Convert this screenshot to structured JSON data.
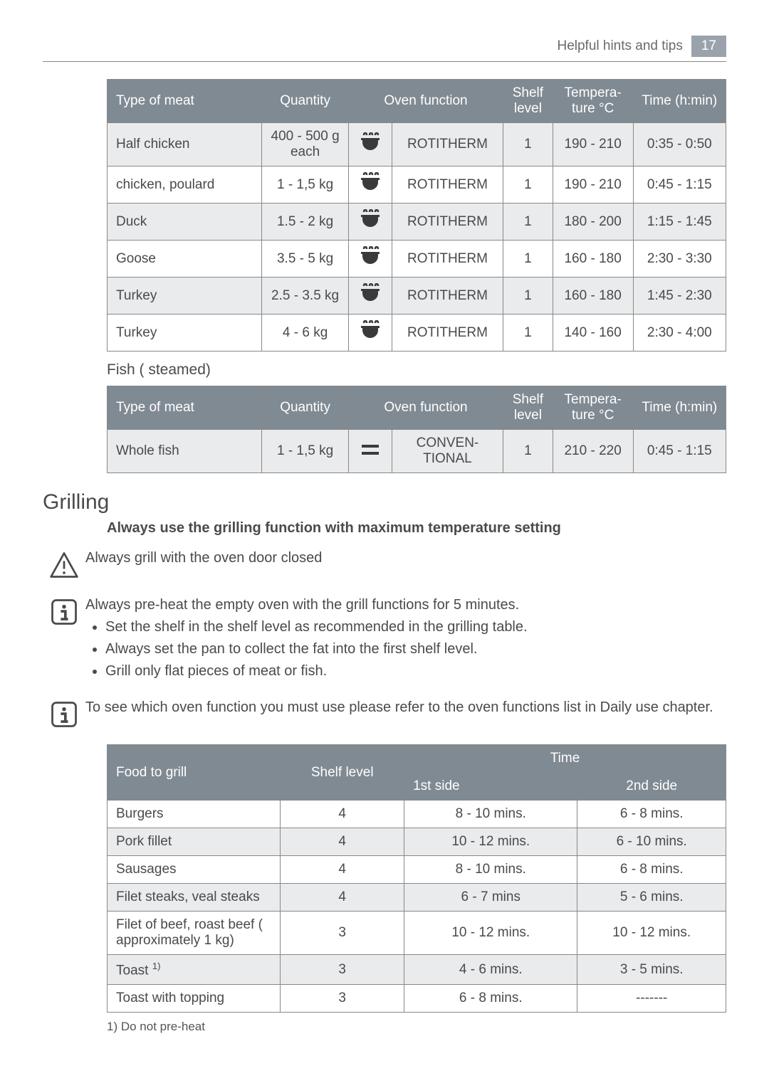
{
  "header": {
    "breadcrumb": "Helpful hints and tips",
    "page_number": "17"
  },
  "colors": {
    "header_bg": "#808a92",
    "stripe": "#e9ebed",
    "text": "#4a4a4a",
    "border": "#888888"
  },
  "table1": {
    "headers": [
      "Type of meat",
      "Quantity",
      "Oven function",
      "Shelf level",
      "Tempera-\nture °C",
      "Time (h:min)"
    ],
    "rows": [
      {
        "type": "Half chicken",
        "qty": "400 - 500 g each",
        "icon": "rotitherm",
        "fn": "ROTITHERM",
        "shelf": "1",
        "temp": "190 - 210",
        "time": "0:35 - 0:50"
      },
      {
        "type": "chicken, poulard",
        "qty": "1 - 1,5 kg",
        "icon": "rotitherm",
        "fn": "ROTITHERM",
        "shelf": "1",
        "temp": "190 - 210",
        "time": "0:45 - 1:15"
      },
      {
        "type": "Duck",
        "qty": "1.5 - 2 kg",
        "icon": "rotitherm",
        "fn": "ROTITHERM",
        "shelf": "1",
        "temp": "180 - 200",
        "time": "1:15 - 1:45"
      },
      {
        "type": "Goose",
        "qty": "3.5 - 5 kg",
        "icon": "rotitherm",
        "fn": "ROTITHERM",
        "shelf": "1",
        "temp": "160 - 180",
        "time": "2:30 - 3:30"
      },
      {
        "type": "Turkey",
        "qty": "2.5 - 3.5 kg",
        "icon": "rotitherm",
        "fn": "ROTITHERM",
        "shelf": "1",
        "temp": "160 - 180",
        "time": "1:45 - 2:30"
      },
      {
        "type": "Turkey",
        "qty": "4 - 6 kg",
        "icon": "rotitherm",
        "fn": "ROTITHERM",
        "shelf": "1",
        "temp": "140 - 160",
        "time": "2:30 - 4:00"
      }
    ]
  },
  "fish_title": "Fish ( steamed)",
  "table2": {
    "headers": [
      "Type of meat",
      "Quantity",
      "Oven function",
      "Shelf level",
      "Tempera-\nture °C",
      "Time (h:min)"
    ],
    "rows": [
      {
        "type": "Whole fish",
        "qty": "1 - 1,5 kg",
        "icon": "conventional",
        "fn": "CONVEN-\nTIONAL",
        "shelf": "1",
        "temp": "210 - 220",
        "time": "0:45 - 1:15"
      }
    ]
  },
  "grilling": {
    "title": "Grilling",
    "bold": "Always use the grilling function with maximum temperature setting",
    "warning_text": "Always grill with the oven door closed",
    "info1_intro": "Always pre-heat the empty oven with the grill functions for 5 minutes.",
    "info1_bullets": [
      "Set the shelf in the shelf level as recommended in the grilling table.",
      "Always set the pan to collect the fat into the first shelf level.",
      "Grill only flat pieces of meat or fish."
    ],
    "info2_text": "To see which oven function you must use please refer to the oven functions list in Daily use chapter."
  },
  "table3": {
    "headers_top": [
      "Food to grill",
      "Shelf level",
      "Time"
    ],
    "headers_sub": [
      "1st side",
      "2nd side"
    ],
    "rows": [
      {
        "food": "Burgers",
        "shelf": "4",
        "side1": "8 - 10 mins.",
        "side2": "6 - 8 mins."
      },
      {
        "food": "Pork fillet",
        "shelf": "4",
        "side1": "10 - 12 mins.",
        "side2": "6 - 10 mins."
      },
      {
        "food": "Sausages",
        "shelf": "4",
        "side1": "8 - 10 mins.",
        "side2": "6 - 8 mins."
      },
      {
        "food": "Filet steaks, veal steaks",
        "shelf": "4",
        "side1": "6 - 7 mins",
        "side2": "5 - 6 mins."
      },
      {
        "food": "Filet of beef, roast beef ( approximately 1 kg)",
        "shelf": "3",
        "side1": "10 - 12 mins.",
        "side2": "10 - 12 mins."
      },
      {
        "food": "Toast ",
        "shelf": "3",
        "side1": "4 - 6 mins.",
        "side2": "3 - 5 mins.",
        "sup": "1)"
      },
      {
        "food": "Toast with topping",
        "shelf": "3",
        "side1": "6 - 8 mins.",
        "side2": "-------"
      }
    ]
  },
  "footnote": "1) Do not pre-heat"
}
